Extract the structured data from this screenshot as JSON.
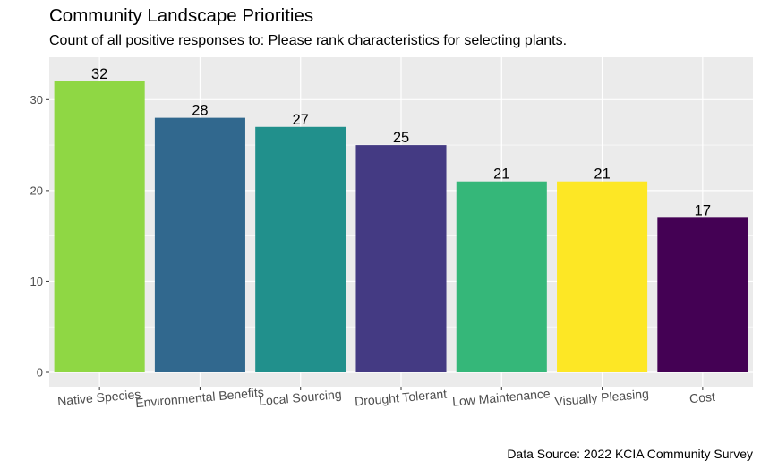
{
  "chart_data": {
    "type": "bar",
    "title": "Community Landscape Priorities",
    "subtitle": "Count of all positive responses to: Please rank characteristics for selecting plants.",
    "caption": "Data Source: 2022 KCIA Community Survey",
    "xlabel": "",
    "ylabel": "",
    "categories": [
      "Native Species",
      "Environmental Benefits",
      "Local Sourcing",
      "Drought Tolerant",
      "Low Maintenance",
      "Visually Pleasing",
      "Cost"
    ],
    "values": [
      32,
      28,
      27,
      25,
      21,
      21,
      17
    ],
    "colors": [
      "#8fd744",
      "#31688e",
      "#21908c",
      "#443a83",
      "#35b779",
      "#fde725",
      "#440154"
    ],
    "ylim": [
      0,
      34.1
    ],
    "yticks": [
      0,
      10,
      20,
      30
    ],
    "grid": true,
    "legend": "none",
    "panel_background": "#ebebeb"
  }
}
